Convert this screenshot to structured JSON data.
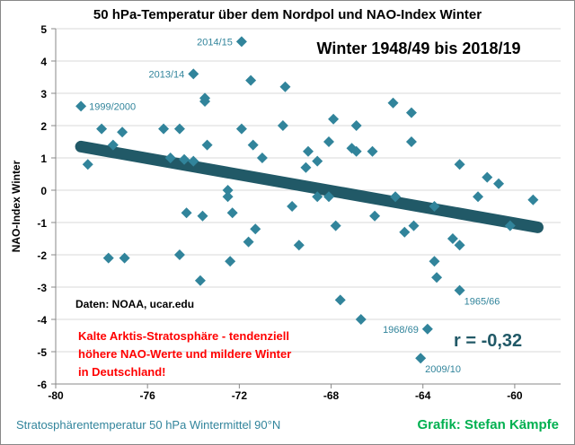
{
  "chart_data": {
    "type": "scatter",
    "title": "50 hPa-Temperatur über dem Nordpol und NAO-Index Winter",
    "subtitle": "Winter 1948/49 bis 2018/19",
    "xlabel": "Stratosphärentemperatur 50 hPa Wintermittel 90°N",
    "ylabel": "NAO-Index Winter",
    "xlim": [
      -80,
      -58
    ],
    "ylim": [
      -6,
      5
    ],
    "xticks": [
      -80,
      -76,
      -72,
      -68,
      -64,
      -60
    ],
    "yticks": [
      5,
      4,
      3,
      2,
      1,
      0,
      -1,
      -2,
      -3,
      -4,
      -5,
      -6
    ],
    "grid": "horizontal",
    "marker_color": "#31849B",
    "trend_color": "#215967",
    "points": [
      [
        -78.9,
        2.6
      ],
      [
        -78.6,
        0.8
      ],
      [
        -78.0,
        1.9
      ],
      [
        -77.5,
        1.4
      ],
      [
        -77.1,
        1.8
      ],
      [
        -77.7,
        -2.1
      ],
      [
        -77.0,
        -2.1
      ],
      [
        -75.3,
        1.9
      ],
      [
        -74.6,
        1.9
      ],
      [
        -75.0,
        1.0
      ],
      [
        -74.4,
        0.95
      ],
      [
        -74.0,
        0.9
      ],
      [
        -74.0,
        3.6
      ],
      [
        -73.5,
        2.85
      ],
      [
        -73.5,
        2.75
      ],
      [
        -73.4,
        1.4
      ],
      [
        -71.9,
        4.6
      ],
      [
        -71.5,
        3.4
      ],
      [
        -71.9,
        1.9
      ],
      [
        -71.4,
        1.4
      ],
      [
        -71.0,
        1.0
      ],
      [
        -70.0,
        3.2
      ],
      [
        -70.1,
        2.0
      ],
      [
        -65.3,
        2.7
      ],
      [
        -64.5,
        2.4
      ],
      [
        -64.5,
        1.5
      ],
      [
        -67.9,
        2.2
      ],
      [
        -68.1,
        1.5
      ],
      [
        -66.9,
        2.0
      ],
      [
        -67.1,
        1.3
      ],
      [
        -66.9,
        1.2
      ],
      [
        -66.2,
        1.2
      ],
      [
        -69.0,
        1.2
      ],
      [
        -69.1,
        0.7
      ],
      [
        -68.6,
        0.9
      ],
      [
        -62.4,
        0.8
      ],
      [
        -61.2,
        0.4
      ],
      [
        -60.7,
        0.2
      ],
      [
        -61.6,
        -0.2
      ],
      [
        -59.2,
        -0.3
      ],
      [
        -68.6,
        -0.2
      ],
      [
        -68.1,
        -0.2
      ],
      [
        -65.2,
        -0.2
      ],
      [
        -63.5,
        -0.5
      ],
      [
        -60.2,
        -1.1
      ],
      [
        -69.4,
        -1.7
      ],
      [
        -67.8,
        -1.1
      ],
      [
        -66.1,
        -0.8
      ],
      [
        -64.8,
        -1.3
      ],
      [
        -64.4,
        -1.1
      ],
      [
        -62.7,
        -1.5
      ],
      [
        -62.4,
        -1.7
      ],
      [
        -63.5,
        -2.2
      ],
      [
        -63.4,
        -2.7
      ],
      [
        -62.4,
        -3.1
      ],
      [
        -67.6,
        -3.4
      ],
      [
        -66.7,
        -4.0
      ],
      [
        -63.8,
        -4.3
      ],
      [
        -64.1,
        -5.2
      ],
      [
        -72.5,
        0.0
      ],
      [
        -72.5,
        -0.2
      ],
      [
        -74.3,
        -0.7
      ],
      [
        -73.6,
        -0.8
      ],
      [
        -72.3,
        -0.7
      ],
      [
        -69.7,
        -0.5
      ],
      [
        -71.3,
        -1.2
      ],
      [
        -71.6,
        -1.6
      ],
      [
        -74.6,
        -2.0
      ],
      [
        -72.4,
        -2.2
      ],
      [
        -73.7,
        -2.8
      ]
    ],
    "trendline": {
      "x": [
        -78.9,
        -59.0
      ],
      "y": [
        1.35,
        -1.15
      ]
    },
    "point_labels": [
      {
        "text": "2014/15",
        "x": -71.9,
        "y": 4.6,
        "side": "left"
      },
      {
        "text": "2013/14",
        "x": -74.0,
        "y": 3.6,
        "side": "left"
      },
      {
        "text": "1999/2000",
        "x": -78.9,
        "y": 2.6,
        "side": "right"
      },
      {
        "text": "1965/66",
        "x": -62.4,
        "y": -3.1,
        "side": "below-right"
      },
      {
        "text": "1968/69",
        "x": -63.8,
        "y": -4.3,
        "side": "left"
      },
      {
        "text": "2009/10",
        "x": -64.1,
        "y": -5.2,
        "side": "below-right"
      }
    ],
    "annotations": {
      "source": "Daten: NOAA, ucar.edu",
      "conclusion": [
        "Kalte Arktis-Stratosphäre - tendenziell",
        "höhere NAO-Werte und mildere Winter",
        "in Deutschland!"
      ],
      "correlation": "r = -0,32",
      "credit": "Grafik: Stefan Kämpfe"
    }
  }
}
